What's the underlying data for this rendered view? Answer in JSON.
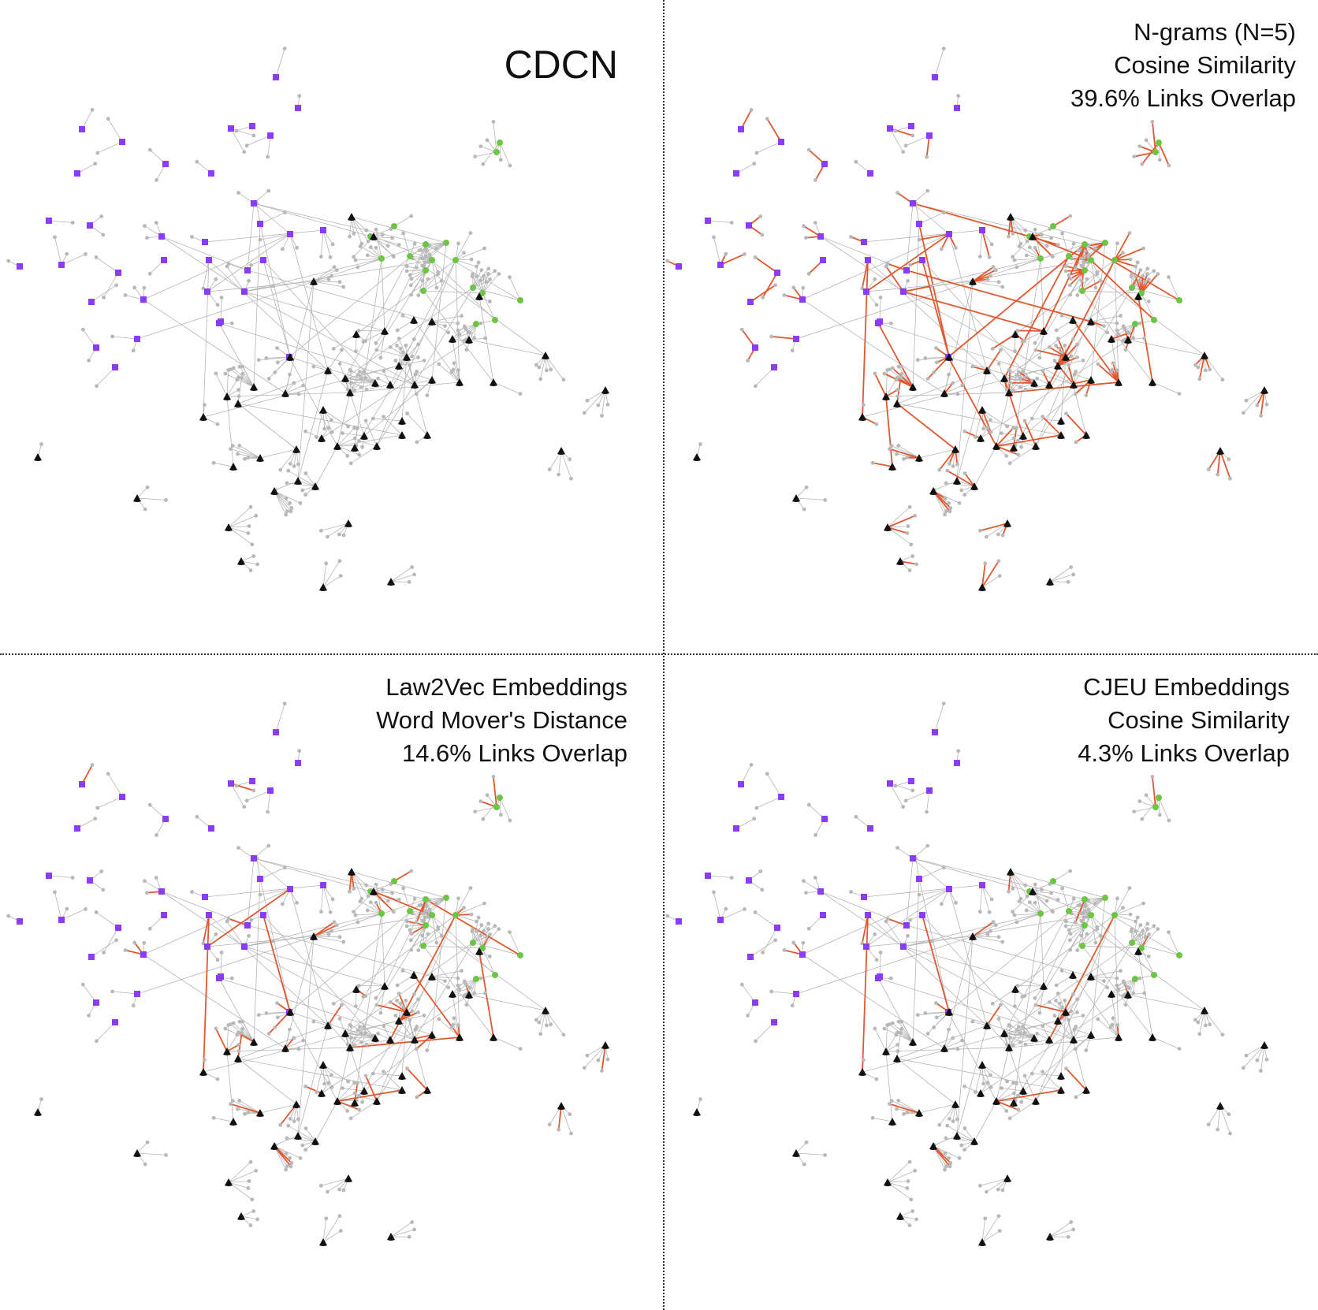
{
  "figure": {
    "panels": [
      {
        "id": "cdcn",
        "lines": [
          "CDCN"
        ],
        "highlight": "none"
      },
      {
        "id": "ngrams",
        "lines": [
          "N-grams (N=5)",
          "Cosine Similarity",
          "39.6% Links Overlap"
        ],
        "highlight": "heavy"
      },
      {
        "id": "law2vec",
        "lines": [
          "Law2Vec Embeddings",
          "Word Mover's Distance",
          "14.6% Links Overlap"
        ],
        "highlight": "medium"
      },
      {
        "id": "cjeu",
        "lines": [
          "CJEU Embeddings",
          "Cosine Similarity",
          "4.3% Links Overlap"
        ],
        "highlight": "light"
      }
    ],
    "colors": {
      "purple_nodes": "#8B3CF7",
      "green_nodes": "#6CC644",
      "black_nodes": "#111111",
      "leaf_nodes": "#B8B8B8",
      "edges": "#B5B5B5",
      "overlap_edges": "#E2582E",
      "divider": "#333333"
    }
  }
}
